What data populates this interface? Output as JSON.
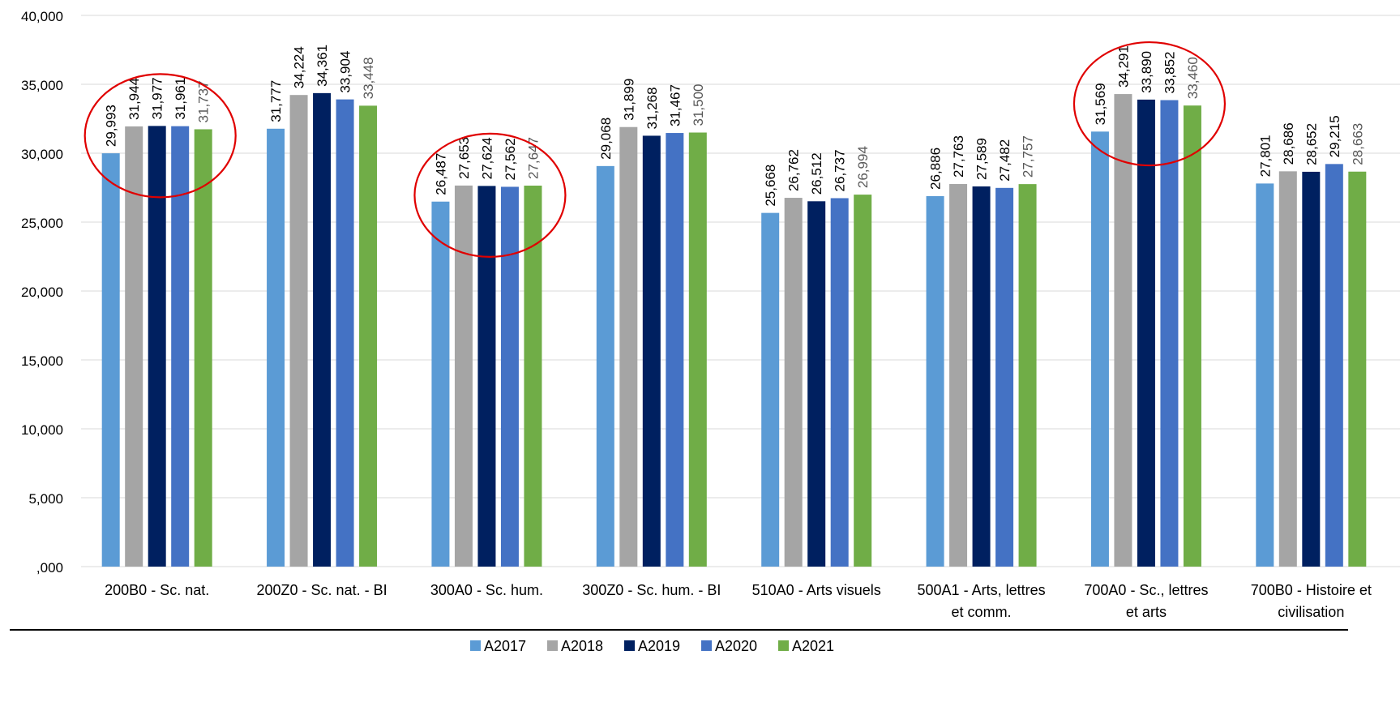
{
  "chart_data": {
    "type": "bar",
    "title": "",
    "xlabel": "",
    "ylabel": "",
    "ylim": [
      0,
      40000
    ],
    "yticks": [
      {
        "value": 0,
        "label": ",000"
      },
      {
        "value": 5000,
        "label": "5,000"
      },
      {
        "value": 10000,
        "label": "10,000"
      },
      {
        "value": 15000,
        "label": "15,000"
      },
      {
        "value": 20000,
        "label": "20,000"
      },
      {
        "value": 25000,
        "label": "25,000"
      },
      {
        "value": 30000,
        "label": "30,000"
      },
      {
        "value": 35000,
        "label": "35,000"
      },
      {
        "value": 40000,
        "label": "40,000"
      }
    ],
    "grid": true,
    "legend_position": "bottom",
    "categories": [
      [
        "200B0 - Sc. nat."
      ],
      [
        "200Z0 - Sc. nat. - BI"
      ],
      [
        "300A0 - Sc. hum."
      ],
      [
        "300Z0 - Sc. hum. - BI"
      ],
      [
        "510A0 - Arts visuels"
      ],
      [
        "500A1 - Arts, lettres",
        "et comm."
      ],
      [
        "700A0 - Sc., lettres",
        "et arts"
      ],
      [
        "700B0 - Histoire et",
        "civilisation"
      ]
    ],
    "series": [
      {
        "name": "A2017",
        "color": "#5B9BD5",
        "values": [
          29993,
          31777,
          26487,
          29068,
          25668,
          26886,
          31569,
          27801
        ],
        "labels": [
          "29,993",
          "31,777",
          "26,487",
          "29,068",
          "25,668",
          "26,886",
          "31,569",
          "27,801"
        ]
      },
      {
        "name": "A2018",
        "color": "#A5A5A5",
        "values": [
          31944,
          34224,
          27653,
          31899,
          26762,
          27763,
          34291,
          28686
        ],
        "labels": [
          "31,944",
          "34,224",
          "27,653",
          "31,899",
          "26,762",
          "27,763",
          "34,291",
          "28,686"
        ]
      },
      {
        "name": "A2019",
        "color": "#002060",
        "values": [
          31977,
          34361,
          27624,
          31268,
          26512,
          27589,
          33890,
          28652
        ],
        "labels": [
          "31,977",
          "34,361",
          "27,624",
          "31,268",
          "26,512",
          "27,589",
          "33,890",
          "28,652"
        ]
      },
      {
        "name": "A2020",
        "color": "#4472C4",
        "values": [
          31961,
          33904,
          27562,
          31467,
          26737,
          27482,
          33852,
          29215
        ],
        "labels": [
          "31,961",
          "33,904",
          "27,562",
          "31,467",
          "26,737",
          "27,482",
          "33,852",
          "29,215"
        ]
      },
      {
        "name": "A2021",
        "color": "#70AD47",
        "values": [
          31737,
          33448,
          27647,
          31500,
          26994,
          27757,
          33460,
          28663
        ],
        "labels": [
          "31,737",
          "33,448",
          "27,647",
          "31,500",
          "26,994",
          "27,757",
          "33,460",
          "28,663"
        ]
      }
    ],
    "highlight_circles": [
      0,
      2,
      6
    ],
    "highlight_color": "#E00000"
  }
}
